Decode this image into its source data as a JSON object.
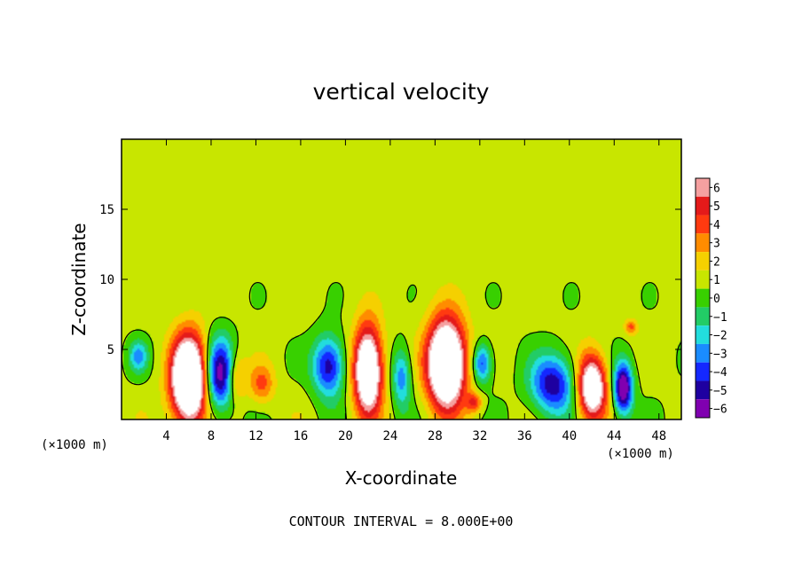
{
  "chart_data": {
    "type": "heatmap",
    "title": "vertical velocity",
    "xlabel": "X-coordinate",
    "ylabel": "Z-coordinate",
    "x_unit": "(×1000 m)",
    "y_unit": "(×1000 m)",
    "xlim": [
      0,
      50
    ],
    "ylim": [
      0,
      20
    ],
    "x_ticks": [
      "4",
      "8",
      "12",
      "16",
      "20",
      "24",
      "28",
      "32",
      "36",
      "40",
      "44",
      "48"
    ],
    "y_ticks": [
      "5",
      "10",
      "15"
    ],
    "footer": "CONTOUR INTERVAL = 8.000E+00",
    "colorbar": {
      "labels": [
        "6",
        "5",
        "4",
        "3",
        "2",
        "1",
        "0",
        "−1",
        "−2",
        "−3",
        "−4",
        "−5",
        "−6"
      ],
      "values": [
        6,
        5,
        4,
        3,
        2,
        1,
        0,
        -1,
        -2,
        -3,
        -4,
        -5,
        -6
      ],
      "colors": [
        "#f5a0a0",
        "#e41a1a",
        "#ff3a10",
        "#ff8c00",
        "#f5d000",
        "#c8e600",
        "#38d000",
        "#22cc66",
        "#22dddd",
        "#1a8cff",
        "#1428ff",
        "#1e00a0",
        "#8000b0"
      ],
      "saturation_color": "#ffffff"
    },
    "background_value": 0.3,
    "features": [
      {
        "kind": "updraft",
        "x": 6.0,
        "z": 2.8,
        "peak": 12.0,
        "sx": 1.1,
        "sz": 2.2
      },
      {
        "kind": "downdraft",
        "x": 8.8,
        "z": 3.2,
        "peak": -7.0,
        "sx": 0.9,
        "sz": 1.8
      },
      {
        "kind": "updraft",
        "x": 10.2,
        "z": 3.0,
        "peak": 3.0,
        "sx": 0.6,
        "sz": 1.2
      },
      {
        "kind": "updraft",
        "x": 12.5,
        "z": 2.5,
        "peak": 3.0,
        "sx": 0.8,
        "sz": 1.0
      },
      {
        "kind": "downdraft",
        "x": 18.5,
        "z": 3.8,
        "peak": -6.0,
        "sx": 1.0,
        "sz": 1.5
      },
      {
        "kind": "updraft",
        "x": 22.0,
        "z": 3.5,
        "peak": 10.0,
        "sx": 0.9,
        "sz": 2.2
      },
      {
        "kind": "downdraft",
        "x": 25.0,
        "z": 3.0,
        "peak": -4.0,
        "sx": 0.6,
        "sz": 1.5
      },
      {
        "kind": "updraft",
        "x": 29.0,
        "z": 4.0,
        "peak": 12.0,
        "sx": 1.2,
        "sz": 2.2
      },
      {
        "kind": "downdraft",
        "x": 32.2,
        "z": 4.0,
        "peak": -5.0,
        "sx": 0.6,
        "sz": 1.0
      },
      {
        "kind": "updraft",
        "x": 31.5,
        "z": 1.2,
        "peak": 3.5,
        "sx": 0.5,
        "sz": 0.5
      },
      {
        "kind": "downdraft",
        "x": 38.5,
        "z": 2.5,
        "peak": -6.0,
        "sx": 1.4,
        "sz": 1.5
      },
      {
        "kind": "updraft",
        "x": 42.0,
        "z": 2.3,
        "peak": 9.0,
        "sx": 0.9,
        "sz": 1.6
      },
      {
        "kind": "downdraft",
        "x": 44.8,
        "z": 2.2,
        "peak": -8.0,
        "sx": 0.6,
        "sz": 1.3
      },
      {
        "kind": "updraft",
        "x": 45.5,
        "z": 6.6,
        "peak": 3.0,
        "sx": 0.4,
        "sz": 0.4
      },
      {
        "kind": "downdraft",
        "x": 1.5,
        "z": 4.5,
        "peak": -3.5,
        "sx": 0.6,
        "sz": 0.8
      }
    ],
    "contour_levels": [
      0
    ]
  }
}
